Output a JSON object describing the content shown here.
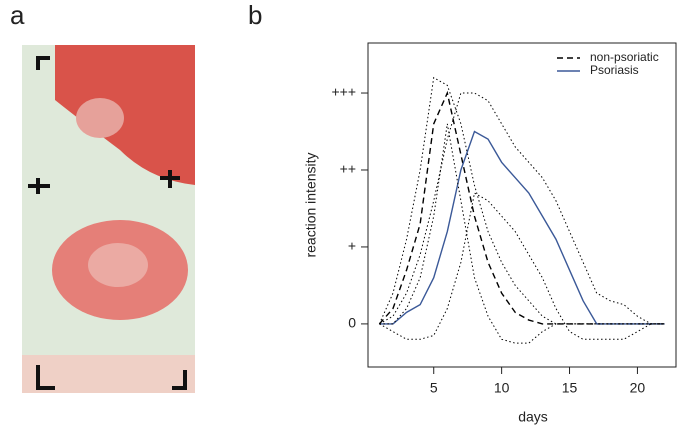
{
  "panels": [
    "a",
    "b"
  ],
  "chart_data": {
    "type": "line",
    "x_label": "days",
    "y_label": "reaction intensity",
    "x": [
      1,
      2,
      3,
      4,
      5,
      6,
      7,
      8,
      9,
      10,
      11,
      12,
      13,
      14,
      15,
      16,
      17,
      18,
      19,
      20,
      21,
      22
    ],
    "series": [
      {
        "name": "non-psoriatic",
        "color": "#000000",
        "dash": "dashed",
        "values": [
          0,
          0.2,
          0.7,
          1.3,
          2.6,
          3.0,
          2.2,
          1.4,
          0.8,
          0.4,
          0.15,
          0.05,
          0,
          0,
          0,
          0,
          0,
          0,
          0,
          0,
          0,
          0
        ]
      },
      {
        "name": "Psoriasis",
        "color": "#3b5998",
        "dash": "solid",
        "values": [
          0,
          0,
          0.15,
          0.25,
          0.6,
          1.2,
          2.0,
          2.5,
          2.4,
          2.1,
          1.9,
          1.7,
          1.4,
          1.1,
          0.7,
          0.3,
          0,
          0,
          0,
          0,
          0,
          0
        ]
      },
      {
        "color": "#000000",
        "dash": "dotted",
        "values": [
          0,
          0.4,
          1.1,
          2.0,
          3.2,
          3.1,
          2.6,
          1.8,
          1.2,
          0.8,
          0.5,
          0.3,
          0.1,
          0,
          0,
          0,
          0,
          0,
          0,
          0,
          0,
          0
        ]
      },
      {
        "color": "#000000",
        "dash": "dotted",
        "values": [
          0,
          0,
          0.2,
          0.6,
          1.4,
          2.6,
          1.6,
          0.6,
          0.1,
          -0.2,
          -0.25,
          -0.25,
          -0.1,
          0,
          0,
          0,
          0,
          0,
          0,
          0,
          0,
          0
        ]
      },
      {
        "color": "#000000",
        "dash": "dotted",
        "values": [
          0,
          0.1,
          0.4,
          0.9,
          1.6,
          2.4,
          3.0,
          3.0,
          2.9,
          2.6,
          2.3,
          2.1,
          1.9,
          1.6,
          1.2,
          0.8,
          0.4,
          0.3,
          0.25,
          0.1,
          0,
          0
        ]
      },
      {
        "color": "#000000",
        "dash": "dotted",
        "values": [
          0,
          -0.1,
          -0.2,
          -0.2,
          -0.15,
          0.2,
          0.8,
          1.7,
          1.6,
          1.4,
          1.2,
          0.9,
          0.6,
          0.2,
          -0.1,
          -0.2,
          -0.2,
          -0.2,
          -0.2,
          -0.1,
          0,
          0
        ]
      }
    ],
    "xlim": [
      0.16,
      22.84
    ],
    "xticks": [
      5,
      10,
      15,
      20
    ],
    "ylim": [
      -0.56,
      3.65
    ],
    "yticks": [
      0,
      {
        "value": 1,
        "label": "+"
      },
      {
        "value": 2,
        "label": "++"
      },
      {
        "value": 3,
        "label": "+++"
      }
    ],
    "legend": "top-right"
  }
}
